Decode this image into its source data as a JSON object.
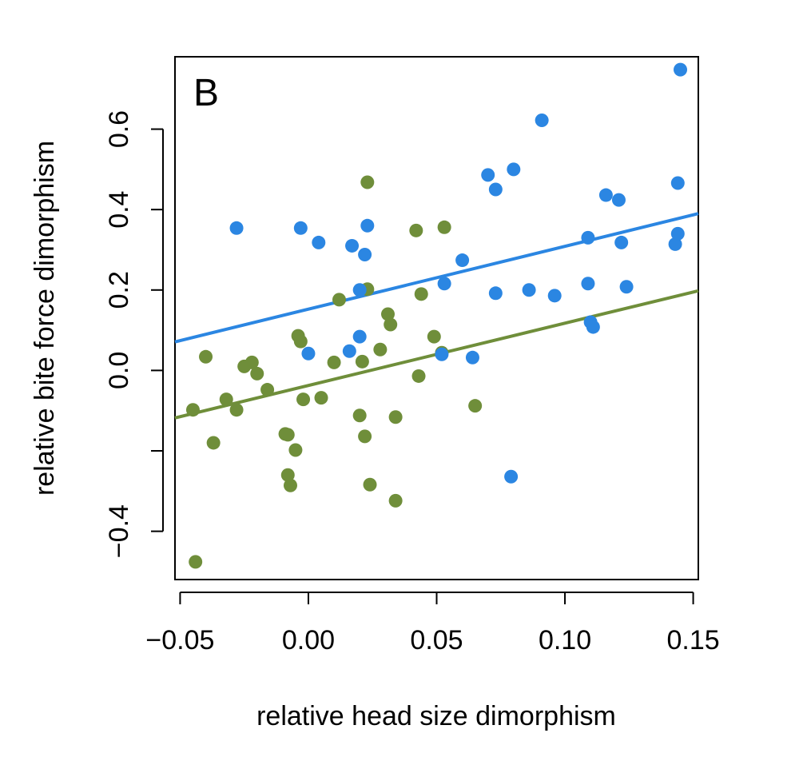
{
  "chart_data": {
    "type": "scatter",
    "panel_label": "B",
    "xlabel": "relative head size dimorphism",
    "ylabel": "relative bite force dimorphism",
    "xlim": [
      -0.052,
      0.152
    ],
    "ylim": [
      -0.52,
      0.78
    ],
    "xticks": [
      -0.05,
      0.0,
      0.05,
      0.1,
      0.15
    ],
    "xtick_labels": [
      "−0.05",
      "0.00",
      "0.05",
      "0.10",
      "0.15"
    ],
    "yticks": [
      -0.4,
      -0.2,
      0.0,
      0.2,
      0.4,
      0.6
    ],
    "ytick_labels": [
      "−0.4",
      "",
      "0.0",
      "0.2",
      "0.4",
      "0.6"
    ],
    "grid": false,
    "series": [
      {
        "color": "#2B86E2",
        "points": [
          [
            -0.028,
            0.354
          ],
          [
            -0.003,
            0.354
          ],
          [
            0.004,
            0.318
          ],
          [
            0.017,
            0.31
          ],
          [
            0.023,
            0.36
          ],
          [
            0.022,
            0.288
          ],
          [
            0.02,
            0.2
          ],
          [
            0.0,
            0.042
          ],
          [
            0.016,
            0.048
          ],
          [
            0.02,
            0.084
          ],
          [
            0.052,
            0.04
          ],
          [
            0.053,
            0.216
          ],
          [
            0.06,
            0.274
          ],
          [
            0.064,
            0.032
          ],
          [
            0.07,
            0.486
          ],
          [
            0.073,
            0.45
          ],
          [
            0.073,
            0.192
          ],
          [
            0.08,
            0.5
          ],
          [
            0.079,
            -0.264
          ],
          [
            0.086,
            0.2
          ],
          [
            0.091,
            0.622
          ],
          [
            0.096,
            0.186
          ],
          [
            0.109,
            0.33
          ],
          [
            0.109,
            0.216
          ],
          [
            0.11,
            0.12
          ],
          [
            0.111,
            0.108
          ],
          [
            0.116,
            0.436
          ],
          [
            0.121,
            0.424
          ],
          [
            0.122,
            0.318
          ],
          [
            0.124,
            0.208
          ],
          [
            0.143,
            0.314
          ],
          [
            0.144,
            0.466
          ],
          [
            0.144,
            0.34
          ],
          [
            0.145,
            0.748
          ]
        ],
        "fit": {
          "x": [
            -0.052,
            0.152
          ],
          "y": [
            0.071,
            0.39
          ]
        }
      },
      {
        "color": "#6F8E3A",
        "points": [
          [
            -0.045,
            -0.098
          ],
          [
            -0.044,
            -0.476
          ],
          [
            -0.04,
            0.034
          ],
          [
            -0.037,
            -0.18
          ],
          [
            -0.032,
            -0.072
          ],
          [
            -0.028,
            -0.098
          ],
          [
            -0.025,
            0.01
          ],
          [
            -0.022,
            0.02
          ],
          [
            -0.02,
            -0.008
          ],
          [
            -0.016,
            -0.048
          ],
          [
            -0.009,
            -0.158
          ],
          [
            -0.008,
            -0.16
          ],
          [
            -0.008,
            -0.26
          ],
          [
            -0.007,
            -0.286
          ],
          [
            -0.005,
            -0.198
          ],
          [
            -0.004,
            0.086
          ],
          [
            -0.003,
            0.072
          ],
          [
            -0.002,
            -0.072
          ],
          [
            0.005,
            -0.068
          ],
          [
            0.01,
            0.02
          ],
          [
            0.012,
            0.176
          ],
          [
            0.02,
            -0.112
          ],
          [
            0.021,
            0.022
          ],
          [
            0.022,
            -0.164
          ],
          [
            0.023,
            0.468
          ],
          [
            0.023,
            0.202
          ],
          [
            0.024,
            -0.284
          ],
          [
            0.028,
            0.052
          ],
          [
            0.031,
            0.14
          ],
          [
            0.032,
            0.114
          ],
          [
            0.034,
            -0.116
          ],
          [
            0.034,
            -0.324
          ],
          [
            0.042,
            0.348
          ],
          [
            0.043,
            -0.014
          ],
          [
            0.044,
            0.19
          ],
          [
            0.049,
            0.084
          ],
          [
            0.052,
            0.044
          ],
          [
            0.053,
            0.356
          ],
          [
            0.065,
            -0.088
          ]
        ],
        "fit": {
          "x": [
            -0.052,
            0.152
          ],
          "y": [
            -0.118,
            0.198
          ]
        }
      }
    ]
  }
}
